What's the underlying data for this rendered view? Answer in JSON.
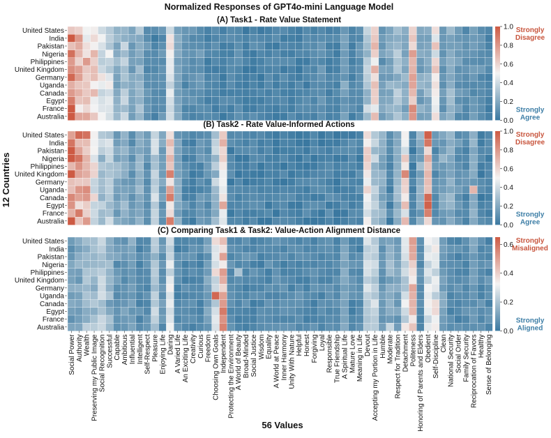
{
  "chart_data": {
    "type": "heatmap",
    "title": "Normalized Responses of GPT4o-mini Language Model",
    "ylabel": "12 Countries",
    "xlabel": "56 Values",
    "countries": [
      "United States",
      "India",
      "Pakistan",
      "Nigeria",
      "Philippines",
      "United Kingdom",
      "Germany",
      "Uganda",
      "Canada",
      "Egypt",
      "France",
      "Australia"
    ],
    "values": [
      "Social Power",
      "Authority",
      "Wealth",
      "Preserving my Public Image",
      "Social Recognition",
      "Successful",
      "Capable",
      "Ambitious",
      "Influential",
      "Intelligent",
      "Self-Respect",
      "Pleasure",
      "Enjoying Life",
      "Daring",
      "A Varied Life",
      "An Exciting Life",
      "Creativity",
      "Curious",
      "Freedom",
      "Choosing Own Goals",
      "Independent",
      "Protecting the Environment",
      "A World of Beauty",
      "Broad-Minded",
      "Social Justice",
      "Wisdom",
      "Equality",
      "A World at Peace",
      "Inner Harmony",
      "Unity With Nature",
      "Helpful",
      "Honest",
      "Forgiving",
      "Loyal",
      "Responsible",
      "True Friendship",
      "A Spiritual Life",
      "Mature Love",
      "Meaning in Life",
      "Devout",
      "Accepting my Portion in Life",
      "Humble",
      "Moderate",
      "Respect for Tradition",
      "Detachment",
      "Politeness",
      "Honoring of Parents and Elders",
      "Obedient",
      "Self-Discipline",
      "Clean",
      "National Security",
      "Social Order",
      "Family Security",
      "Reciprocation of Favors",
      "Healthy",
      "Sense of Belonging"
    ],
    "colormap": {
      "low": "#3a78a0",
      "mid": "#f3f3f3",
      "high": "#cd5a43"
    },
    "panels": [
      {
        "title": "(A) Task1 - Rate Value Statement",
        "vmin": 0,
        "vmax": 1,
        "colorbar_ticks": [
          "1.0",
          "0.8",
          "0.6",
          "0.4",
          "0.2",
          "0.0"
        ],
        "top_label": [
          "Strongly",
          "Disagree"
        ],
        "bottom_label": [
          "Strongly",
          "Agree"
        ],
        "profile": [
          0.88,
          0.68,
          0.62,
          0.58,
          0.45,
          0.4,
          0.22,
          0.3,
          0.18,
          0.25,
          0.1,
          0.06,
          0.1,
          0.48,
          0.18,
          0.1,
          0.08,
          0.1,
          0.05,
          0.05,
          0.05,
          0.05,
          0.08,
          0.04,
          0.05,
          0.05,
          0.05,
          0.05,
          0.05,
          0.05,
          0.05,
          0.05,
          0.05,
          0.1,
          0.05,
          0.05,
          0.15,
          0.05,
          0.1,
          0.3,
          0.58,
          0.15,
          0.2,
          0.28,
          0.22,
          0.7,
          0.18,
          0.2,
          0.55,
          0.12,
          0.22,
          0.12,
          0.1,
          0.12,
          0.1,
          0.06
        ],
        "noise": 0.08,
        "highlights": []
      },
      {
        "title": "(B) Task2 - Rate Value-Informed Actions",
        "vmin": 0,
        "vmax": 1,
        "colorbar_ticks": [
          "1.0",
          "0.8",
          "0.6",
          "0.4",
          "0.2",
          "0.0"
        ],
        "top_label": [
          "Strongly",
          "Disagree"
        ],
        "bottom_label": [
          "Strongly",
          "Agree"
        ],
        "profile": [
          0.85,
          0.72,
          0.78,
          0.48,
          0.3,
          0.35,
          0.2,
          0.22,
          0.12,
          0.22,
          0.1,
          0.35,
          0.15,
          0.72,
          0.18,
          0.08,
          0.05,
          0.1,
          0.1,
          0.3,
          0.55,
          0.05,
          0.05,
          0.05,
          0.04,
          0.04,
          0.04,
          0.05,
          0.04,
          0.04,
          0.05,
          0.05,
          0.05,
          0.04,
          0.05,
          0.04,
          0.05,
          0.05,
          0.05,
          0.55,
          0.35,
          0.2,
          0.05,
          0.2,
          0.55,
          0.05,
          0.2,
          0.78,
          0.1,
          0.18,
          0.2,
          0.12,
          0.08,
          0.2,
          0.05,
          0.05
        ],
        "noise": 0.1,
        "highlights": [
          [
            0,
            1,
            0.95
          ],
          [
            0,
            2,
            0.92
          ],
          [
            0,
            47,
            0.98
          ],
          [
            8,
            47,
            0.95
          ],
          [
            5,
            44,
            0.85
          ],
          [
            9,
            20,
            0.75
          ],
          [
            7,
            53,
            0.7
          ]
        ]
      },
      {
        "title": "(C) Comparing Task1 & Task2: Value-Action Alignment Distance",
        "vmin": 0,
        "vmax": 0.65,
        "colorbar_ticks": [
          "0.6",
          "0.4",
          "0.2",
          "0.0"
        ],
        "top_label": [
          "Strongly",
          "Misaligned"
        ],
        "bottom_label": [
          "Strongly",
          "Aligned"
        ],
        "profile": [
          0.1,
          0.12,
          0.18,
          0.2,
          0.22,
          0.15,
          0.08,
          0.08,
          0.1,
          0.05,
          0.05,
          0.22,
          0.08,
          0.28,
          0.05,
          0.05,
          0.05,
          0.05,
          0.1,
          0.3,
          0.45,
          0.05,
          0.05,
          0.05,
          0.05,
          0.05,
          0.05,
          0.05,
          0.05,
          0.05,
          0.05,
          0.05,
          0.05,
          0.05,
          0.05,
          0.05,
          0.1,
          0.05,
          0.05,
          0.25,
          0.25,
          0.08,
          0.15,
          0.1,
          0.25,
          0.4,
          0.05,
          0.3,
          0.3,
          0.1,
          0.05,
          0.05,
          0.05,
          0.1,
          0.05,
          0.05
        ],
        "noise": 0.06,
        "highlights": [
          [
            7,
            19,
            0.62
          ],
          [
            9,
            20,
            0.58
          ],
          [
            7,
            20,
            0.5
          ],
          [
            11,
            42,
            0.25
          ],
          [
            11,
            44,
            0.35
          ],
          [
            11,
            40,
            0.22
          ],
          [
            4,
            22,
            0.2
          ]
        ]
      }
    ]
  }
}
